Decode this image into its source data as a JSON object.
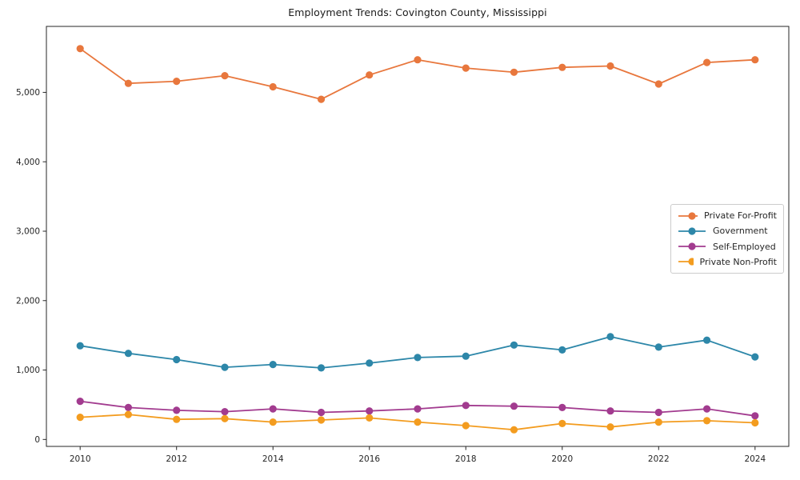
{
  "chart_data": {
    "type": "line",
    "title": "Employment Trends: Covington County, Mississippi",
    "xlabel": "",
    "ylabel": "",
    "x": [
      2010,
      2011,
      2012,
      2013,
      2014,
      2015,
      2016,
      2017,
      2018,
      2019,
      2020,
      2021,
      2022,
      2023,
      2024
    ],
    "series": [
      {
        "name": "Private For-Profit",
        "color": "#e8773d",
        "values": [
          5630,
          5130,
          5160,
          5240,
          5080,
          4900,
          5250,
          5470,
          5350,
          5290,
          5360,
          5380,
          5120,
          5430,
          5470
        ]
      },
      {
        "name": "Government",
        "color": "#2d87a9",
        "values": [
          1350,
          1240,
          1150,
          1040,
          1080,
          1030,
          1100,
          1180,
          1200,
          1360,
          1290,
          1480,
          1330,
          1430,
          1190
        ]
      },
      {
        "name": "Self-Employed",
        "color": "#a23b8f",
        "values": [
          550,
          460,
          420,
          400,
          440,
          390,
          410,
          440,
          490,
          480,
          460,
          410,
          390,
          440,
          340
        ]
      },
      {
        "name": "Private Non-Profit",
        "color": "#f39c1f",
        "values": [
          320,
          360,
          290,
          300,
          250,
          280,
          310,
          250,
          200,
          140,
          230,
          180,
          250,
          270,
          240
        ]
      }
    ],
    "xticks": [
      2010,
      2012,
      2014,
      2016,
      2018,
      2020,
      2022,
      2024
    ],
    "xtick_labels": [
      "2010",
      "2012",
      "2014",
      "2016",
      "2018",
      "2020",
      "2022",
      "2024"
    ],
    "yticks": [
      0,
      1000,
      2000,
      3000,
      4000,
      5000
    ],
    "ytick_labels": [
      "0",
      "1,000",
      "2,000",
      "3,000",
      "4,000",
      "5,000"
    ],
    "xlim": [
      2009.3,
      2024.7
    ],
    "ylim": [
      -100,
      5950
    ],
    "grid": false,
    "legend_position": "center right",
    "marker": "circle"
  }
}
